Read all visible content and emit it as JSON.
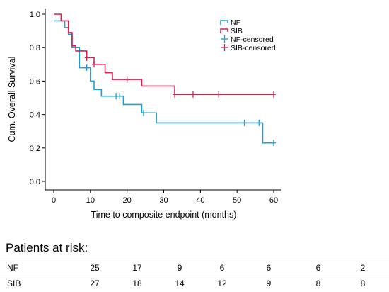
{
  "chart_data": {
    "type": "line",
    "title": "",
    "xlabel": "Time to composite endpoint (months)",
    "ylabel": "Cum. Overall Survival",
    "xlim": [
      0,
      60
    ],
    "ylim": [
      0,
      1.0
    ],
    "x_ticks": [
      0,
      10,
      20,
      30,
      40,
      50,
      60
    ],
    "x_tick_labels": [
      "0",
      "10",
      "20",
      "30",
      "40",
      "50",
      "60"
    ],
    "y_ticks": [
      0.0,
      0.2,
      0.4,
      0.6,
      0.8,
      1.0
    ],
    "y_tick_labels": [
      "0.0",
      "0.2",
      "0.4",
      "0.6",
      "0.8",
      "1.0"
    ],
    "grid": false,
    "legend_position": "top-right",
    "legend": [
      "NF",
      "SIB",
      "NF-censored",
      "SIB-censored"
    ],
    "series": [
      {
        "name": "NF",
        "color": "#1a9fd8",
        "steps": [
          [
            0,
            0.96
          ],
          [
            3,
            0.92
          ],
          [
            4,
            0.88
          ],
          [
            5,
            0.8
          ],
          [
            7,
            0.68
          ],
          [
            10,
            0.6
          ],
          [
            11,
            0.55
          ],
          [
            13,
            0.51
          ],
          [
            16,
            0.51
          ],
          [
            19,
            0.46
          ],
          [
            24,
            0.41
          ],
          [
            28,
            0.35
          ],
          [
            56,
            0.35
          ],
          [
            57,
            0.23
          ],
          [
            60,
            0.23
          ]
        ],
        "censored": [
          9,
          17,
          18,
          24.5,
          52,
          56,
          60
        ],
        "censored_y": [
          0.68,
          0.51,
          0.51,
          0.41,
          0.35,
          0.35,
          0.23
        ]
      },
      {
        "name": "SIB",
        "color": "#d6204e",
        "steps": [
          [
            0,
            1.0
          ],
          [
            2,
            0.96
          ],
          [
            4,
            0.89
          ],
          [
            5,
            0.81
          ],
          [
            6,
            0.78
          ],
          [
            9,
            0.74
          ],
          [
            11,
            0.7
          ],
          [
            14,
            0.65
          ],
          [
            16,
            0.61
          ],
          [
            24,
            0.57
          ],
          [
            33,
            0.52
          ],
          [
            60,
            0.52
          ]
        ],
        "censored": [
          9,
          11,
          20,
          33,
          38,
          45,
          60
        ],
        "censored_y": [
          0.74,
          0.7,
          0.61,
          0.52,
          0.52,
          0.52,
          0.52
        ]
      }
    ]
  },
  "risk_table": {
    "title": "Patients at risk:",
    "rows": [
      {
        "group": "NF",
        "values": [
          "25",
          "17",
          "9",
          "6",
          "6",
          "6",
          "2"
        ]
      },
      {
        "group": "SIB",
        "values": [
          "27",
          "18",
          "14",
          "12",
          "9",
          "8",
          "8"
        ]
      }
    ]
  }
}
